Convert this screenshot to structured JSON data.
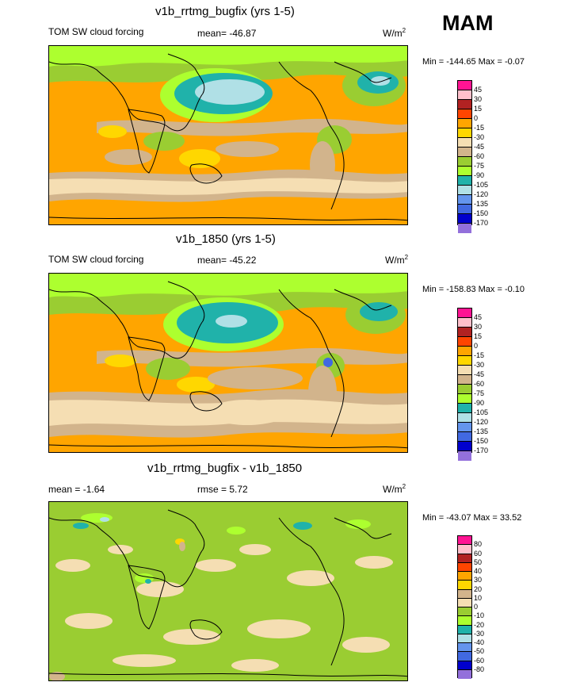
{
  "season": "MAM",
  "colors": {
    "control_scale": [
      "#ff1493",
      "#ffc0cb",
      "#b22222",
      "#ff4500",
      "#ffa500",
      "#ffd700",
      "#f5deb3",
      "#d2b48c",
      "#9acd32",
      "#adff2f",
      "#20b2aa",
      "#b0e0e6",
      "#6495ed",
      "#4169e1",
      "#0000cd",
      "#9370db"
    ],
    "diff_scale": [
      "#ff1493",
      "#ffc0cb",
      "#b22222",
      "#ff4500",
      "#ffa500",
      "#ffd700",
      "#d2b48c",
      "#f5deb3",
      "#9acd32",
      "#adff2f",
      "#20b2aa",
      "#b0e0e6",
      "#6495ed",
      "#4169e1",
      "#0000cd",
      "#9370db"
    ],
    "ocean": "#ffa500",
    "coast": "#000000"
  },
  "panels": [
    {
      "title": "v1b_rrtmg_bugfix (yrs 1-5)",
      "left_label": "TOM SW cloud forcing",
      "center_label": "mean= -46.87",
      "unit_base": "W/m",
      "unit_sup": "2",
      "minmax": "Min = -144.65 Max =  -0.07",
      "ticks": [
        "45",
        "30",
        "15",
        "0",
        "-15",
        "-30",
        "-45",
        "-60",
        "-75",
        "-90",
        "-105",
        "-120",
        "-135",
        "-150",
        "-170"
      ]
    },
    {
      "title": "v1b_1850 (yrs 1-5)",
      "left_label": "TOM SW cloud forcing",
      "center_label": "mean= -45.22",
      "unit_base": "W/m",
      "unit_sup": "2",
      "minmax": "Min = -158.83 Max =  -0.10",
      "ticks": [
        "45",
        "30",
        "15",
        "0",
        "-15",
        "-30",
        "-45",
        "-60",
        "-75",
        "-90",
        "-105",
        "-120",
        "-135",
        "-150",
        "-170"
      ]
    },
    {
      "title": "v1b_rrtmg_bugfix - v1b_1850",
      "left_label": "mean =  -1.64",
      "center_label": "rmse =   5.72",
      "unit_base": "W/m",
      "unit_sup": "2",
      "minmax": "Min = -43.07 Max =  33.52",
      "ticks": [
        "80",
        "60",
        "50",
        "40",
        "30",
        "20",
        "10",
        "0",
        "-10",
        "-20",
        "-30",
        "-40",
        "-50",
        "-60",
        "-80"
      ]
    }
  ]
}
